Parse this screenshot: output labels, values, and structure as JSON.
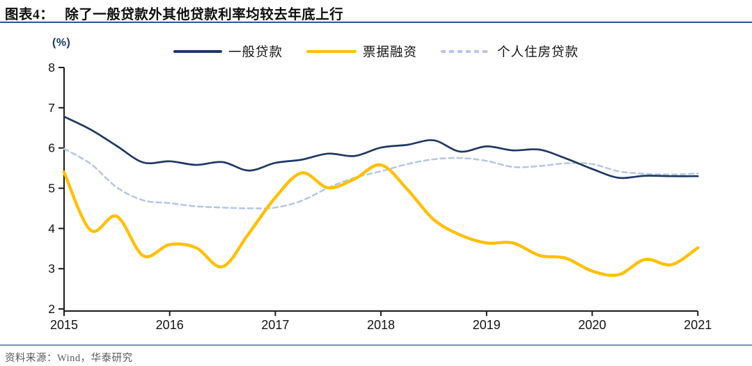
{
  "header": {
    "figure_label": "图表4：",
    "title": "除了一般贷款外其他贷款利率均较去年底上行"
  },
  "chart": {
    "unit_label": "(%)"
  },
  "footer": {
    "source": "资料来源：Wind，华泰研究"
  },
  "colors": {
    "title_rule": "#2d5491",
    "source_rule": "#7590c5",
    "axis": "#1a1a1a",
    "general_loan_line": "#1f3864",
    "bill_financing_line": "#ffc000",
    "housing_loan_line": "#b4c6e7",
    "unit_label": "#1f3864",
    "source_text": "#595959"
  },
  "chart_data": {
    "type": "line",
    "title": "除了一般贷款外其他贷款利率均较去年底上行",
    "unit": "%",
    "xlabel": "",
    "ylabel": "(%)",
    "x_start": 2015.0,
    "x_step": 0.25,
    "x_tick_labels": [
      "2015",
      "2016",
      "2017",
      "2018",
      "2019",
      "2020",
      "2021"
    ],
    "y_ticks": [
      2,
      3,
      4,
      5,
      6,
      7,
      8
    ],
    "ylim": [
      2,
      8
    ],
    "xlim": [
      2015,
      2021
    ],
    "grid": false,
    "legend_position": "top",
    "smoothing": "spline",
    "series": [
      {
        "name": "一般贷款",
        "style": "solid",
        "color": "#1f3864",
        "values": [
          6.78,
          6.46,
          6.05,
          5.64,
          5.67,
          5.58,
          5.65,
          5.44,
          5.63,
          5.71,
          5.86,
          5.8,
          6.01,
          6.08,
          6.19,
          5.91,
          6.04,
          5.94,
          5.96,
          5.74,
          5.48,
          5.26,
          5.31,
          5.3,
          5.3
        ]
      },
      {
        "name": "票据融资",
        "style": "solid",
        "color": "#ffc000",
        "values": [
          5.4,
          3.96,
          4.3,
          3.32,
          3.6,
          3.52,
          3.05,
          3.88,
          4.77,
          5.38,
          5.01,
          5.23,
          5.58,
          4.97,
          4.22,
          3.84,
          3.64,
          3.64,
          3.33,
          3.26,
          2.94,
          2.85,
          3.23,
          3.1,
          3.52
        ]
      },
      {
        "name": "个人住房贷款",
        "style": "dashed",
        "color": "#b4c6e7",
        "values": [
          5.98,
          5.61,
          5.02,
          4.7,
          4.63,
          4.55,
          4.52,
          4.5,
          4.52,
          4.69,
          5.01,
          5.26,
          5.42,
          5.6,
          5.72,
          5.75,
          5.68,
          5.53,
          5.55,
          5.62,
          5.6,
          5.42,
          5.36,
          5.34,
          5.37
        ]
      }
    ]
  }
}
